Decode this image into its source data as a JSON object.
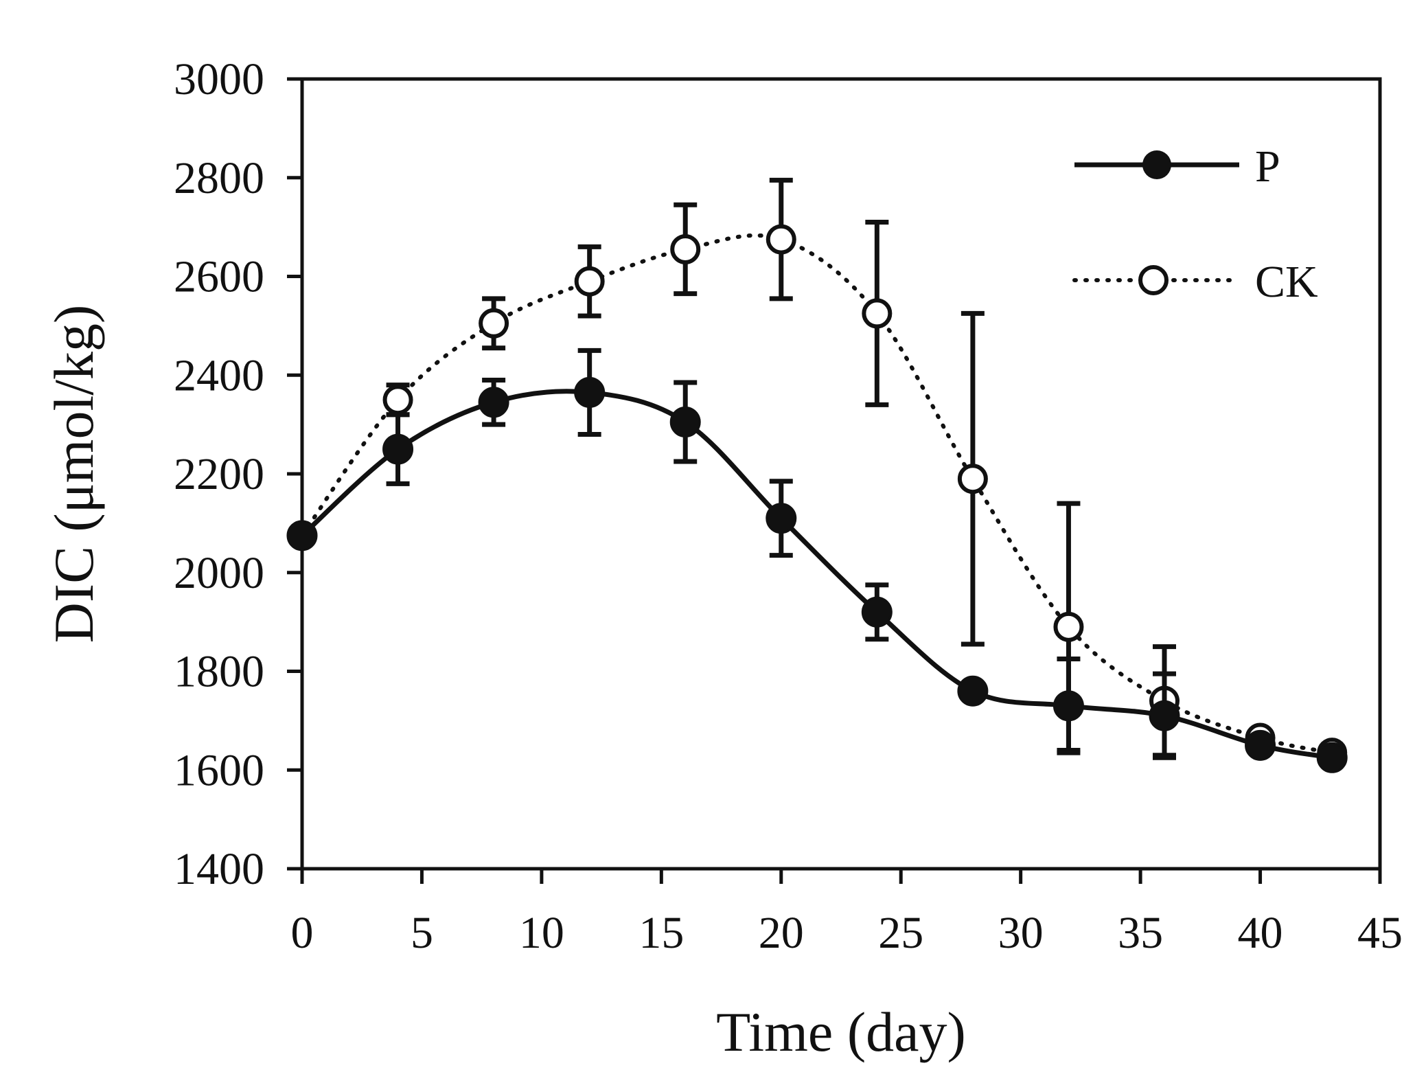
{
  "chart_data": {
    "type": "line",
    "title": "",
    "xlabel": "Time (day)",
    "ylabel": "DIC (μmol/kg)",
    "xlim": [
      0,
      45
    ],
    "ylim": [
      1400,
      3000
    ],
    "xticks": [
      0,
      5,
      10,
      15,
      20,
      25,
      30,
      35,
      40,
      45
    ],
    "yticks": [
      1400,
      1600,
      1800,
      2000,
      2200,
      2400,
      2600,
      2800,
      3000
    ],
    "grid": false,
    "legend_position": "top-right",
    "series": [
      {
        "name": "P",
        "style": "solid",
        "marker": "filled-circle",
        "x": [
          0,
          4,
          8,
          12,
          16,
          20,
          24,
          28,
          32,
          36,
          40,
          43
        ],
        "y": [
          2075,
          2250,
          2345,
          2365,
          2305,
          2110,
          1920,
          1760,
          1730,
          1710,
          1650,
          1625
        ],
        "error": [
          0,
          70,
          45,
          85,
          80,
          75,
          55,
          0,
          95,
          85,
          0,
          0
        ]
      },
      {
        "name": "CK",
        "style": "dotted",
        "marker": "open-circle",
        "x": [
          0,
          4,
          8,
          12,
          16,
          20,
          24,
          28,
          32,
          36,
          40,
          43
        ],
        "y": [
          2075,
          2350,
          2505,
          2590,
          2655,
          2675,
          2525,
          2190,
          1890,
          1740,
          1665,
          1635
        ],
        "error": [
          0,
          30,
          50,
          70,
          90,
          120,
          185,
          335,
          250,
          110,
          0,
          0
        ]
      }
    ]
  }
}
